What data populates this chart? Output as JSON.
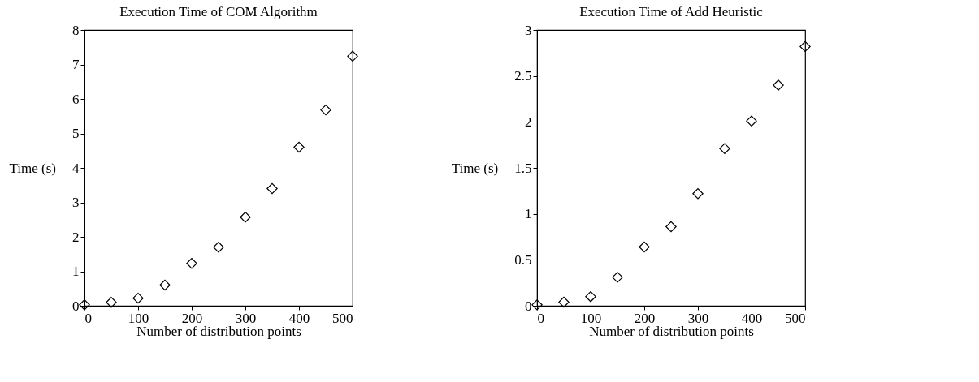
{
  "chart_data": [
    {
      "type": "scatter",
      "title": "Execution Time of COM Algorithm",
      "xlabel": "Number of distribution points",
      "ylabel": "Time (s)",
      "x": [
        0,
        50,
        100,
        150,
        200,
        250,
        300,
        350,
        400,
        450,
        500
      ],
      "series": [
        {
          "color": "#000000",
          "values": [
            0.03,
            0.1,
            0.22,
            0.6,
            1.23,
            1.7,
            2.57,
            3.4,
            4.6,
            5.68,
            7.24
          ]
        }
      ],
      "xlim": [
        0,
        500
      ],
      "xticks": [
        0,
        100,
        200,
        300,
        400,
        500
      ],
      "ylim": [
        0,
        8
      ],
      "yticks": [
        0,
        1,
        2,
        3,
        4,
        5,
        6,
        7,
        8
      ],
      "marker": "diamond",
      "grid": false
    },
    {
      "type": "scatter",
      "title": "Execution Time of Add Heuristic",
      "xlabel": "Number of distribution points",
      "ylabel": "Time (s)",
      "x": [
        0,
        50,
        100,
        150,
        200,
        250,
        300,
        350,
        400,
        450,
        500
      ],
      "series": [
        {
          "color": "#000000",
          "values": [
            0.01,
            0.04,
            0.1,
            0.31,
            0.64,
            0.86,
            1.22,
            1.71,
            2.01,
            2.4,
            2.82
          ]
        }
      ],
      "xlim": [
        0,
        500
      ],
      "xticks": [
        0,
        100,
        200,
        300,
        400,
        500
      ],
      "ylim": [
        0,
        3
      ],
      "yticks": [
        0,
        0.5,
        1,
        1.5,
        2,
        2.5,
        3
      ],
      "marker": "diamond",
      "grid": false
    }
  ]
}
